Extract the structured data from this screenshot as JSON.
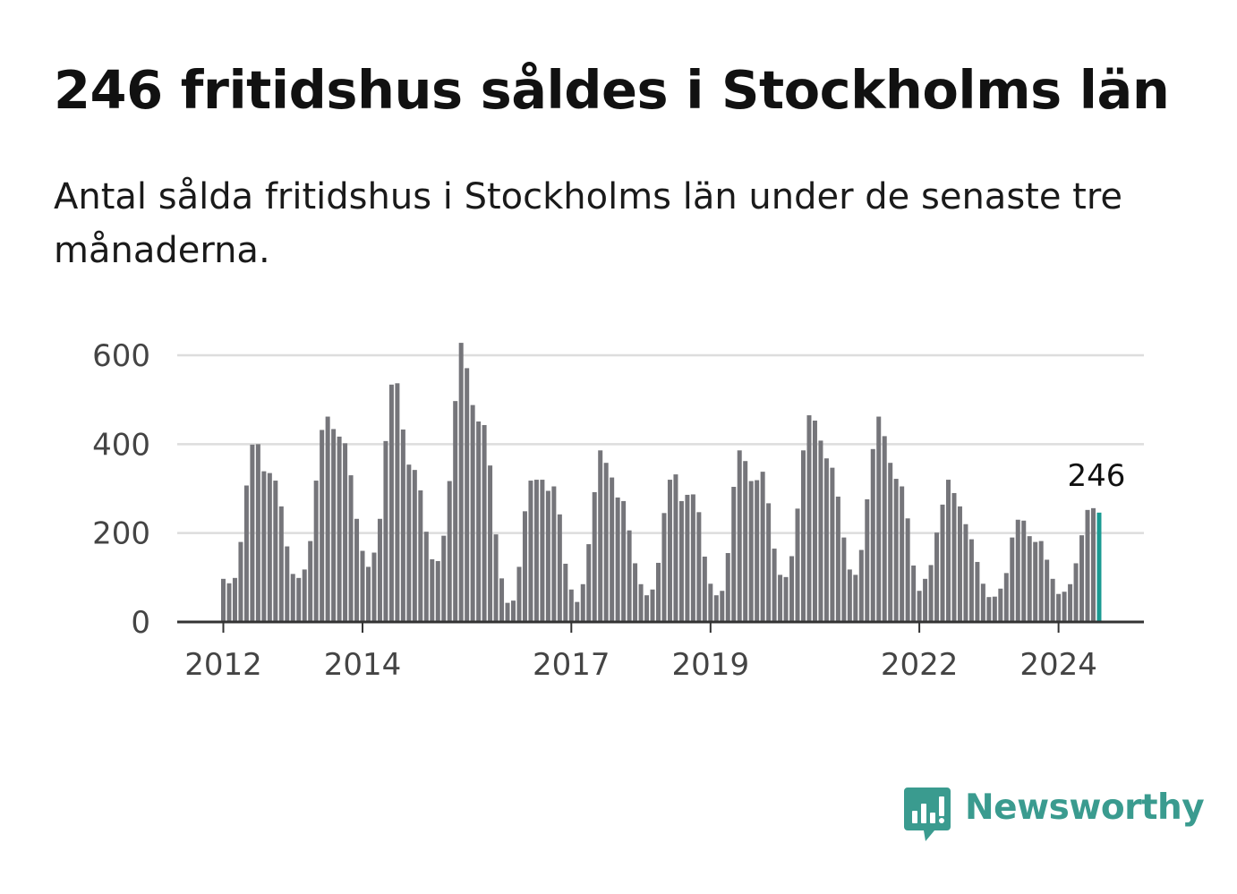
{
  "header": {
    "title": "246 fritidshus såldes i Stockholms län",
    "subtitle": "Antal sålda fritidshus i Stockholms län under de senaste tre månaderna."
  },
  "logo": {
    "text": "Newsworthy",
    "icon": "newsworthy-chart-bubble-icon",
    "color": "#3a9b8f"
  },
  "colors": {
    "bar": "#75757a",
    "highlight": "#1a9a92",
    "grid": "#dddddd",
    "axis": "#333333"
  },
  "chart_data": {
    "type": "bar",
    "title": "246 fritidshus såldes i Stockholms län",
    "subtitle": "Antal sålda fritidshus i Stockholms län under de senaste tre månaderna.",
    "x_start": "2012-01",
    "x_interval": "month",
    "xticks": [
      "2012",
      "2014",
      "2017",
      "2019",
      "2022",
      "2024"
    ],
    "xtick_months": [
      0,
      24,
      60,
      84,
      120,
      144
    ],
    "yticks": [
      0,
      200,
      400,
      600
    ],
    "ylim": [
      0,
      640
    ],
    "grid": true,
    "highlight_label": "246",
    "values": [
      97,
      87,
      99,
      180,
      307,
      399,
      400,
      339,
      335,
      318,
      260,
      170,
      108,
      99,
      118,
      182,
      318,
      432,
      462,
      434,
      417,
      402,
      330,
      232,
      160,
      124,
      156,
      232,
      407,
      534,
      537,
      433,
      354,
      342,
      296,
      203,
      141,
      137,
      194,
      317,
      497,
      628,
      571,
      488,
      451,
      443,
      352,
      197,
      98,
      43,
      48,
      124,
      249,
      318,
      320,
      320,
      295,
      305,
      242,
      131,
      73,
      45,
      85,
      175,
      292,
      386,
      358,
      325,
      280,
      272,
      206,
      132,
      85,
      60,
      73,
      133,
      245,
      320,
      332,
      272,
      286,
      287,
      247,
      147,
      86,
      60,
      70,
      155,
      304,
      386,
      362,
      317,
      319,
      338,
      267,
      165,
      106,
      101,
      148,
      255,
      386,
      465,
      453,
      408,
      368,
      347,
      282,
      190,
      118,
      106,
      162,
      276,
      389,
      462,
      418,
      358,
      322,
      305,
      233,
      127,
      70,
      97,
      128,
      201,
      264,
      320,
      290,
      260,
      220,
      186,
      135,
      86,
      56,
      57,
      75,
      110,
      190,
      230,
      228,
      193,
      180,
      182,
      140,
      97,
      63,
      68,
      85,
      132,
      195,
      252,
      256,
      246
    ]
  }
}
